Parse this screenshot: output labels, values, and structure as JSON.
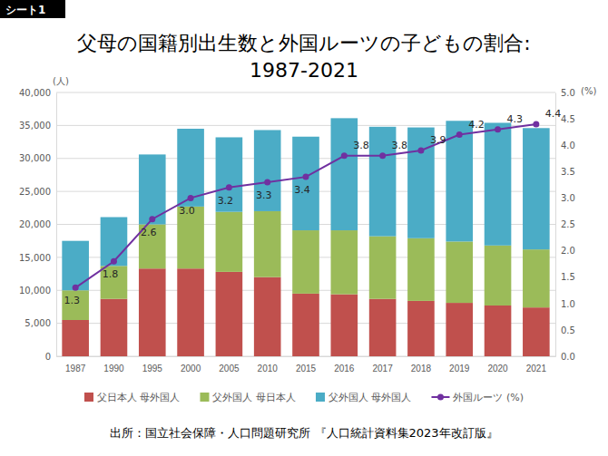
{
  "chart_data": {
    "type": "bar",
    "stacked": true,
    "title": [
      "父母の国籍別出生数と外国ルーツの子どもの割合:",
      "1987-2021"
    ],
    "annotations": [
      "シート1",
      "出所：国立社会保障・人口問題研究所 『人口統計資料集2023年改訂版』"
    ],
    "ylabel": "(人)",
    "y2label": "(%)",
    "categories": [
      "1987",
      "1990",
      "1995",
      "2000",
      "2005",
      "2010",
      "2015",
      "2016",
      "2017",
      "2018",
      "2019",
      "2020",
      "2021"
    ],
    "series": [
      {
        "name": "父日本人 母外国人",
        "color": "#c0504d",
        "type": "bar",
        "values": [
          5500,
          8700,
          13300,
          13300,
          12800,
          12000,
          9500,
          9400,
          8700,
          8400,
          8100,
          7700,
          7400
        ]
      },
      {
        "name": "父外国人 母日本人",
        "color": "#9bbb59",
        "type": "bar",
        "values": [
          4500,
          5000,
          6700,
          9400,
          9100,
          10000,
          9600,
          9700,
          9500,
          9500,
          9300,
          9100,
          8800
        ]
      },
      {
        "name": "父外国人 母外国人",
        "color": "#4bacc6",
        "type": "bar",
        "values": [
          7500,
          7400,
          10600,
          11800,
          11300,
          12300,
          14200,
          17000,
          16600,
          16800,
          18300,
          18600,
          18400
        ]
      },
      {
        "name": "外国ルーツ (%)",
        "color": "#7030a0",
        "type": "line",
        "axis": "y2",
        "marker": "circle",
        "data_labels": true,
        "values": [
          1.3,
          1.8,
          2.6,
          3.0,
          3.2,
          3.3,
          3.4,
          3.8,
          3.8,
          3.9,
          4.2,
          4.3,
          4.4
        ],
        "value_labels": [
          "1.3",
          "1.8",
          "2.6",
          "3.0",
          "3.2",
          "3.3",
          "3.4",
          "3.8",
          "3.8",
          "3.9",
          "4.2",
          "4.3",
          "4.4"
        ]
      }
    ],
    "ylim": [
      0,
      40000
    ],
    "yticks": [
      0,
      {
        "value": 5000,
        "label": "5,000"
      },
      {
        "value": 10000,
        "label": "10,000"
      },
      {
        "value": 15000,
        "label": "15,000"
      },
      {
        "value": 20000,
        "label": "20,000"
      },
      {
        "value": 25000,
        "label": "25,000"
      },
      {
        "value": 30000,
        "label": "30,000"
      },
      {
        "value": 35000,
        "label": "35,000"
      },
      {
        "value": 40000,
        "label": "40,000"
      }
    ],
    "y2lim": [
      0,
      5
    ],
    "y2ticks": [
      {
        "value": 0,
        "label": "0.0"
      },
      {
        "value": 0.5,
        "label": "0.5"
      },
      {
        "value": 1,
        "label": "1.0"
      },
      {
        "value": 1.5,
        "label": "1.5"
      },
      {
        "value": 2,
        "label": "2.0"
      },
      {
        "value": 2.5,
        "label": "2.5"
      },
      {
        "value": 3,
        "label": "3.0"
      },
      {
        "value": 3.5,
        "label": "3.5"
      },
      {
        "value": 4,
        "label": "4.0"
      },
      {
        "value": 4.5,
        "label": "4.5"
      },
      {
        "value": 5,
        "label": "5.0"
      }
    ],
    "grid": true,
    "legend": "bottom"
  }
}
